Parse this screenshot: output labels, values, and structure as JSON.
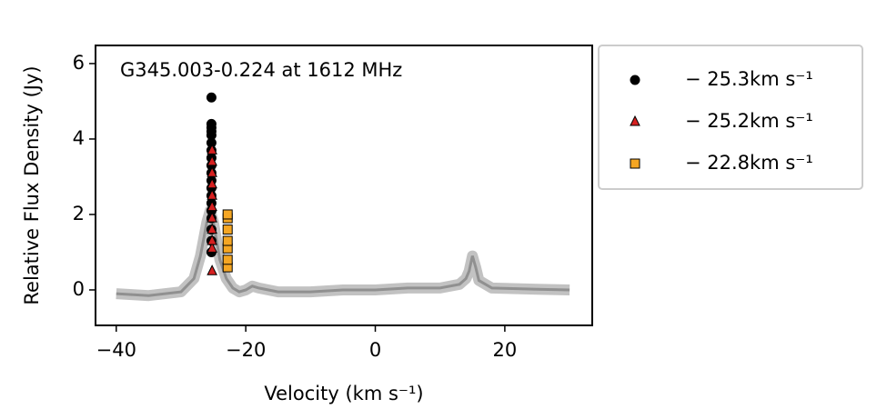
{
  "chart_data": {
    "type": "scatter",
    "annotation": "G345.003-0.224 at 1612 MHz",
    "x_label": "Velocity (km s⁻¹)",
    "y_label": "Relative Flux Density (Jy)",
    "xlim": [
      -43.2,
      33.5
    ],
    "xticks": [
      {
        "value": -40,
        "label": "−40"
      },
      {
        "value": -20,
        "label": "−20"
      },
      0,
      20
    ],
    "ylim": [
      -0.94,
      6.48
    ],
    "yticks": [
      0,
      2,
      4,
      6
    ],
    "legend": "outside upper right",
    "spectrum": {
      "color": "#909090",
      "x": [
        -40,
        -35,
        -30,
        -28,
        -27,
        -26,
        -25.5,
        -25,
        -24.5,
        -24,
        -23,
        -22,
        -21,
        -20,
        -19,
        -18,
        -15,
        -10,
        -5,
        0,
        5,
        10,
        13,
        14,
        14.5,
        15,
        15.5,
        16,
        18,
        25,
        30
      ],
      "y": [
        -0.1,
        -0.15,
        -0.05,
        0.3,
        0.9,
        1.8,
        2.1,
        1.8,
        1.3,
        0.8,
        0.3,
        0.05,
        -0.05,
        0.0,
        0.1,
        0.05,
        -0.05,
        -0.05,
        0,
        0,
        0.05,
        0.05,
        0.15,
        0.3,
        0.5,
        0.9,
        0.6,
        0.25,
        0.05,
        0.02,
        0
      ]
    },
    "series": [
      {
        "name": "− 25.3km s⁻¹",
        "marker": "circle",
        "color": "#000000",
        "x": [
          -25.3,
          -25.3,
          -25.3,
          -25.3,
          -25.3,
          -25.3,
          -25.3,
          -25.3,
          -25.3,
          -25.3,
          -25.3,
          -25.3,
          -25.3,
          -25.3,
          -25.3,
          -25.3,
          -25.3,
          -25.3,
          -25.3
        ],
        "values": [
          1.0,
          1.3,
          1.6,
          1.9,
          2.1,
          2.3,
          2.5,
          2.7,
          2.9,
          3.1,
          3.3,
          3.5,
          3.7,
          3.9,
          4.1,
          4.2,
          4.3,
          4.4,
          5.1
        ]
      },
      {
        "name": "− 25.2km s⁻¹",
        "marker": "triangle",
        "color": "#d62020",
        "x": [
          -25.2,
          -25.2,
          -25.2,
          -25.2,
          -25.2,
          -25.2,
          -25.2,
          -25.2,
          -25.2,
          -25.2,
          -25.2
        ],
        "values": [
          0.5,
          1.1,
          1.3,
          1.6,
          1.9,
          2.2,
          2.5,
          2.8,
          3.1,
          3.4,
          3.7
        ]
      },
      {
        "name": "− 22.8km s⁻¹",
        "marker": "square",
        "color": "#f5a623",
        "x": [
          -22.8,
          -22.8,
          -22.8,
          -22.8,
          -22.8,
          -22.8,
          -22.8
        ],
        "values": [
          0.6,
          0.8,
          1.1,
          1.3,
          1.6,
          1.9,
          2.0
        ]
      }
    ]
  }
}
